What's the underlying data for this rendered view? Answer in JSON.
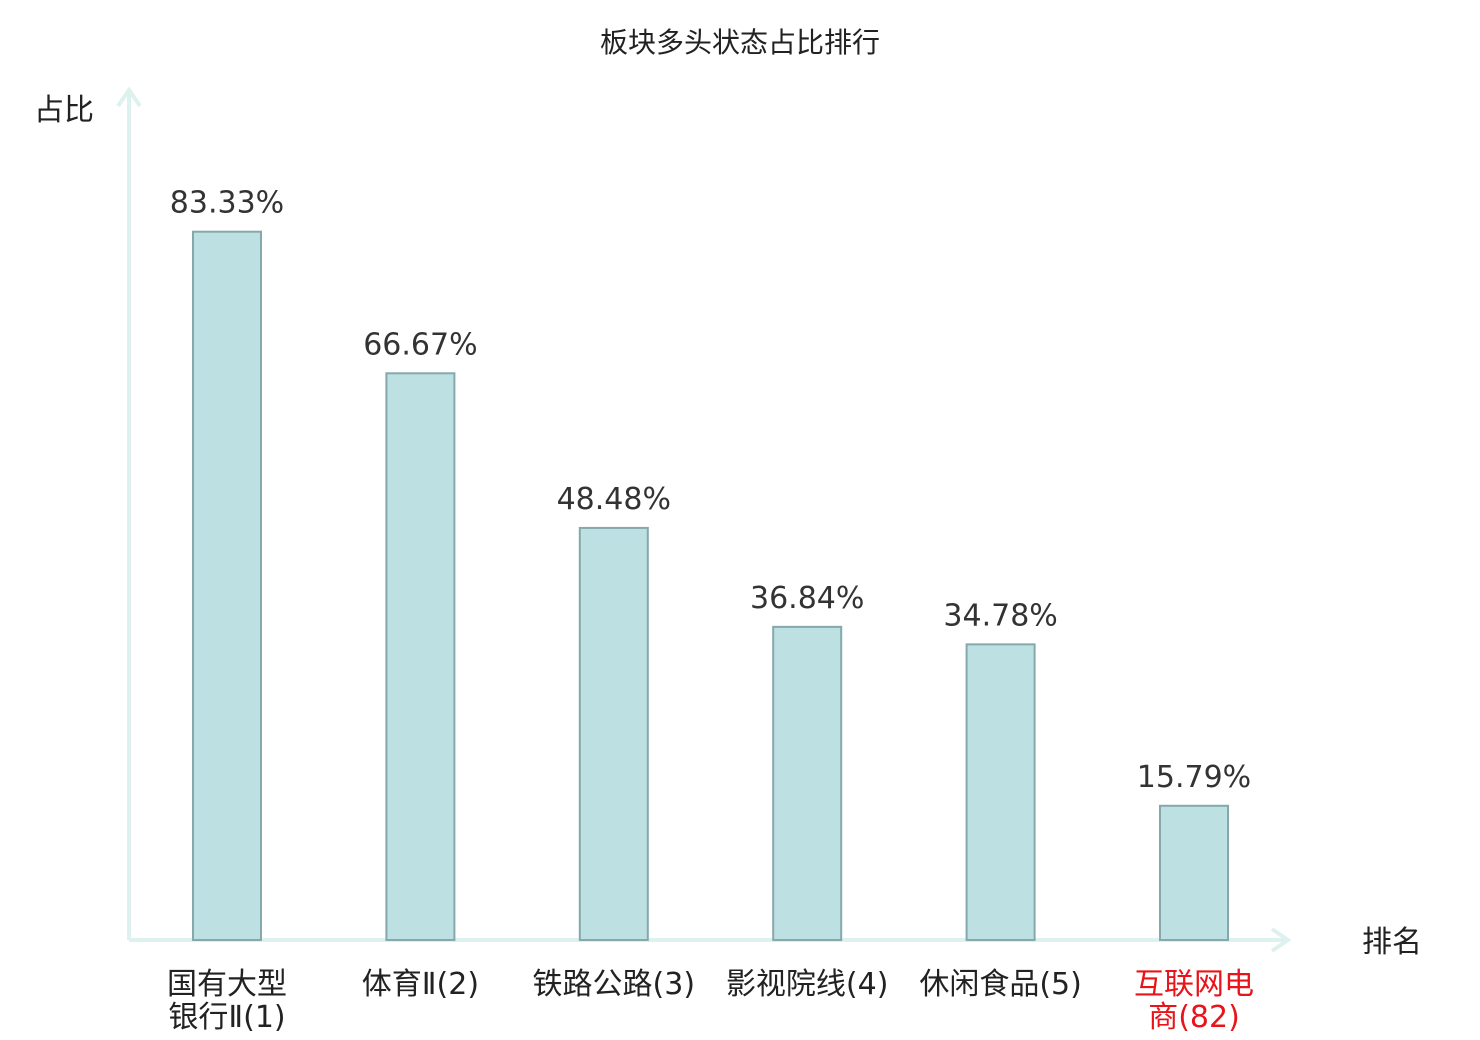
{
  "chart_data": {
    "type": "bar",
    "title": "板块多头状态占比排行",
    "xlabel": "排名",
    "ylabel": "占比",
    "categories": [
      [
        "国有大型",
        "银行Ⅱ(1)"
      ],
      [
        "体育Ⅱ(2)"
      ],
      [
        "铁路公路(3)"
      ],
      [
        "影视院线(4)"
      ],
      [
        "休闲食品(5)"
      ],
      [
        "互联网电",
        "商(82)"
      ]
    ],
    "values": [
      83.33,
      66.67,
      48.48,
      36.84,
      34.78,
      15.79
    ],
    "value_labels": [
      "83.33%",
      "66.67%",
      "48.48%",
      "36.84%",
      "34.78%",
      "15.79%"
    ],
    "highlight_index": 5,
    "ylim": [
      0,
      100
    ],
    "grid": false,
    "colors": {
      "bar_fill": "#bde0e3",
      "bar_stroke": "#84a8ab",
      "axis": "#ddf1ee",
      "highlight_text": "#e8141a",
      "normal_text": "#222222"
    }
  }
}
